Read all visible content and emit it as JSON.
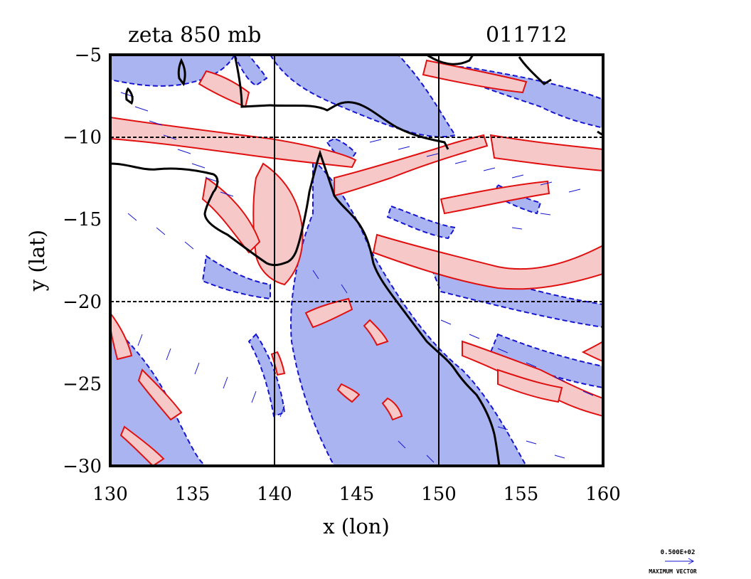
{
  "chart_data": {
    "type": "contour",
    "title": "zeta 850 mb",
    "timestamp": "011712",
    "xlabel": "x (lon)",
    "ylabel": "y (lat)",
    "xlim": [
      130,
      160
    ],
    "ylim": [
      -30,
      -5
    ],
    "xticks": [
      130,
      135,
      140,
      145,
      150,
      155,
      160
    ],
    "yticks": [
      -5,
      -10,
      -15,
      -20,
      -25,
      -30
    ],
    "grid_lines": {
      "lon": [
        140,
        150
      ],
      "lat": [
        -10,
        -20
      ]
    },
    "positive_fill": "#f7c8c8",
    "positive_line": "#e01010",
    "negative_fill": "#aab4f0",
    "negative_line": "#1515d0",
    "coast_color": "#000000",
    "vector_key": {
      "value": "0.500E+02",
      "label": "MAXIMUM VECTOR"
    }
  }
}
